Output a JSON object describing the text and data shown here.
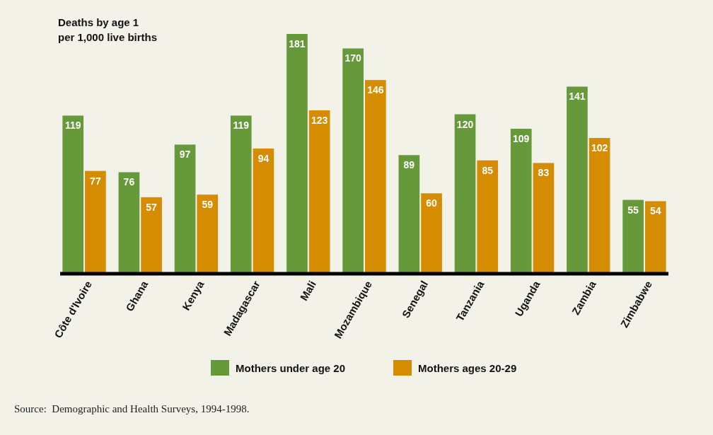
{
  "chart_data": {
    "type": "bar",
    "ylabel": "Deaths by age 1\nper 1,000 live births",
    "categories": [
      "Côte d'Ivoire",
      "Ghana",
      "Kenya",
      "Madagascar",
      "Mali",
      "Mozambique",
      "Senegal",
      "Tanzania",
      "Uganda",
      "Zambia",
      "Zimbabwe"
    ],
    "series": [
      {
        "name": "Mothers under age 20",
        "color": "#66993a",
        "values": [
          119,
          76,
          97,
          119,
          181,
          170,
          89,
          120,
          109,
          141,
          55
        ]
      },
      {
        "name": "Mothers ages 20-29",
        "color": "#d68c00",
        "values": [
          77,
          57,
          59,
          94,
          123,
          146,
          60,
          85,
          83,
          102,
          54
        ]
      }
    ],
    "relative": false,
    "data_labels": true,
    "legend": "bottom",
    "annotations": [
      "Source:  Demographic and Health Surveys, 1994-1998."
    ]
  }
}
